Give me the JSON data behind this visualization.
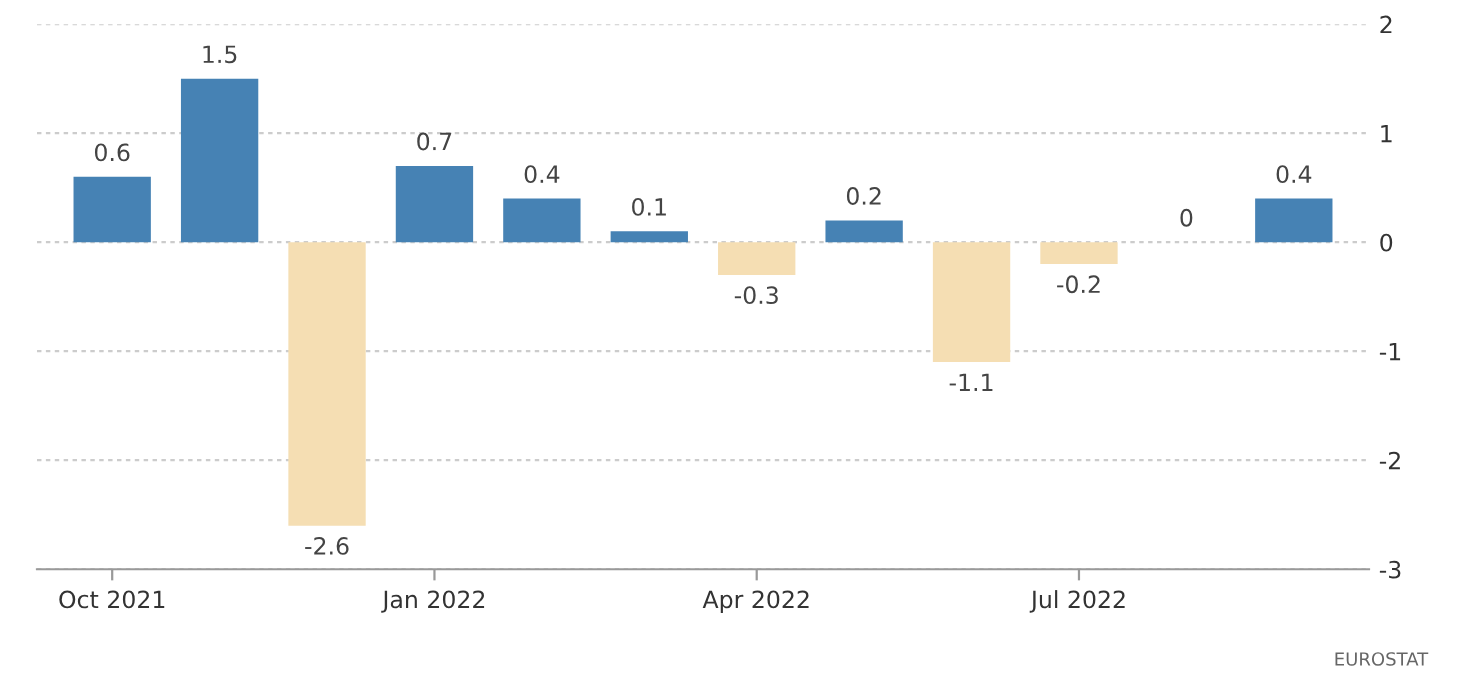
{
  "chart_data": {
    "type": "bar",
    "categories": [
      "Oct 2021",
      null,
      null,
      "Jan 2022",
      null,
      null,
      "Apr 2022",
      null,
      null,
      "Jul 2022",
      null,
      null
    ],
    "values": [
      0.6,
      1.5,
      -2.6,
      0.7,
      0.4,
      0.1,
      -0.3,
      0.2,
      -1.1,
      -0.2,
      0,
      0.4
    ],
    "colors": [
      "#4682b4",
      "#4682b4",
      "#f5deb3",
      "#4682b4",
      "#4682b4",
      "#4682b4",
      "#f5deb3",
      "#4682b4",
      "#f5deb3",
      "#f5deb3",
      "#4682b4",
      "#4682b4"
    ],
    "ylim": [
      -3,
      2
    ],
    "yticks": [
      -3,
      -2,
      -1,
      0,
      1,
      2
    ],
    "grid": "y",
    "data_labels": true,
    "annotations": [
      "EUROSTAT"
    ]
  }
}
